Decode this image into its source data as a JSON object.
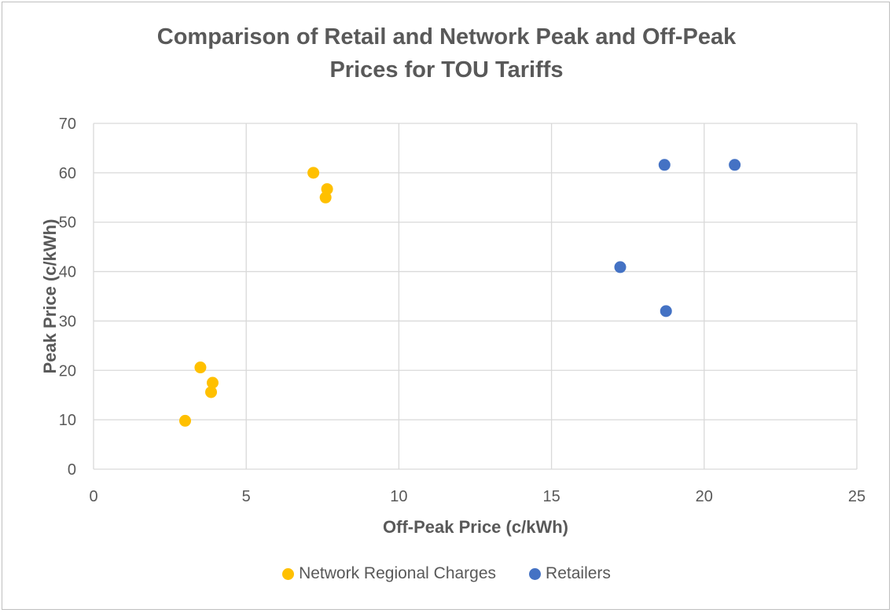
{
  "chart_data": {
    "type": "scatter",
    "title_lines": [
      "Comparison of Retail and Network Peak and Off-Peak",
      "Prices for TOU Tariffs"
    ],
    "xlabel": "Off-Peak Price (c/kWh)",
    "ylabel": "Peak Price (c/kWh)",
    "xlim": [
      0,
      25
    ],
    "ylim": [
      0,
      70
    ],
    "x_ticks": [
      0,
      5,
      10,
      15,
      20,
      25
    ],
    "y_ticks": [
      0,
      10,
      20,
      30,
      40,
      50,
      60,
      70
    ],
    "grid": true,
    "legend_position": "bottom",
    "series": [
      {
        "name": "Network Regional Charges",
        "color": "#FFC000",
        "points": [
          {
            "x": 7.2,
            "y": 60
          },
          {
            "x": 7.65,
            "y": 56.7
          },
          {
            "x": 7.6,
            "y": 55
          },
          {
            "x": 3.5,
            "y": 20.6
          },
          {
            "x": 3.9,
            "y": 17.5
          },
          {
            "x": 3.85,
            "y": 15.6
          },
          {
            "x": 3.0,
            "y": 9.8
          }
        ]
      },
      {
        "name": "Retailers",
        "color": "#4472C4",
        "points": [
          {
            "x": 18.7,
            "y": 61.6
          },
          {
            "x": 21.0,
            "y": 61.6
          },
          {
            "x": 17.25,
            "y": 40.9
          },
          {
            "x": 18.75,
            "y": 32
          }
        ]
      }
    ]
  }
}
